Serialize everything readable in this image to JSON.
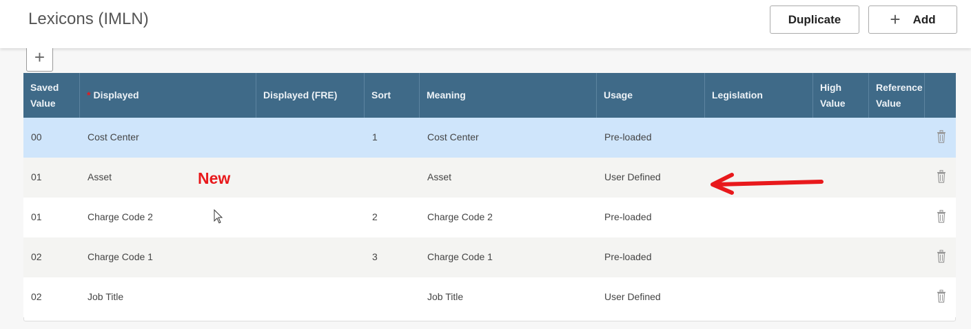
{
  "header": {
    "title": "Lexicons (IMLN)",
    "duplicate_label": "Duplicate",
    "add_label": "Add"
  },
  "table": {
    "columns": [
      "Saved\nValue",
      "Displayed",
      "Displayed (FRE)",
      "Sort",
      "Meaning",
      "Usage",
      "Legislation",
      "High\nValue",
      "Reference\nValue"
    ],
    "required_marker": "*",
    "rows": [
      {
        "saved_value": "00",
        "displayed": "Cost Center",
        "displayed_fre": "",
        "sort": "1",
        "meaning": "Cost Center",
        "usage": "Pre-loaded",
        "selected": true
      },
      {
        "saved_value": "01",
        "displayed": "Asset",
        "displayed_fre": "",
        "sort": "",
        "meaning": "Asset",
        "usage": "User Defined"
      },
      {
        "saved_value": "01",
        "displayed": "Charge Code 2",
        "displayed_fre": "",
        "sort": "2",
        "meaning": "Charge Code 2",
        "usage": "Pre-loaded"
      },
      {
        "saved_value": "02",
        "displayed": "Charge Code 1",
        "displayed_fre": "",
        "sort": "3",
        "meaning": "Charge Code 1",
        "usage": "Pre-loaded"
      },
      {
        "saved_value": "02",
        "displayed": "Job Title",
        "displayed_fre": "",
        "sort": "",
        "meaning": "Job Title",
        "usage": "User Defined"
      }
    ]
  },
  "annotation": {
    "label": "New",
    "color": "#e8191c"
  },
  "colors": {
    "header_bg": "#3f6a88",
    "selected_row": "#cfe5fb",
    "alt_row": "#f4f4f2"
  }
}
